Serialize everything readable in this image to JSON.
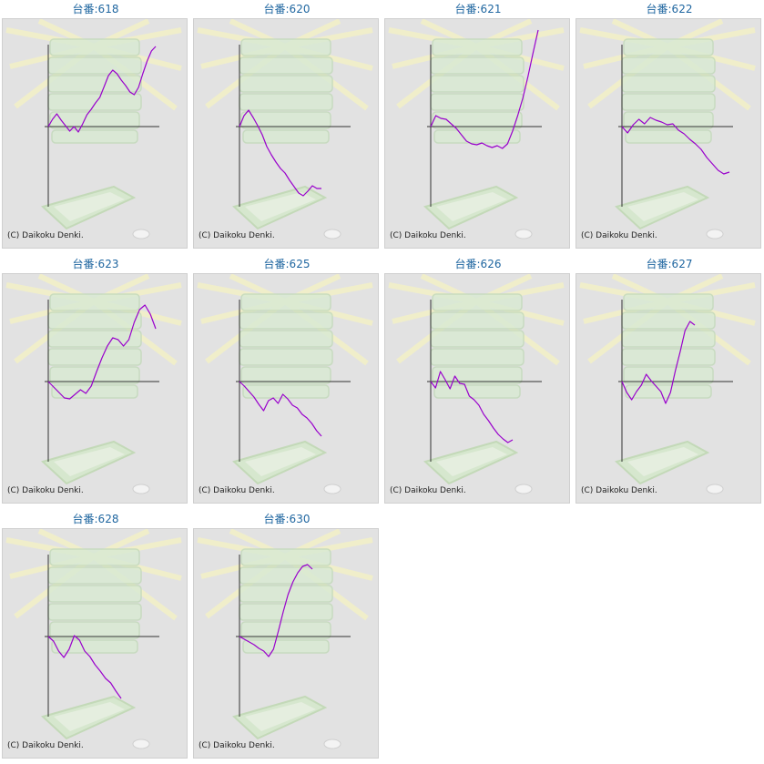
{
  "credit": "(C) Daikoku Denki.",
  "colors": {
    "line": "#9900cc",
    "axis": "#333333",
    "title": "#1f66a0",
    "panel": "#e2e2e2"
  },
  "chart_data": [
    {
      "type": "line",
      "title": "台番:618",
      "y": [
        0,
        0.8,
        1.4,
        0.7,
        0.1,
        -0.5,
        0.0,
        -0.6,
        0.3,
        1.3,
        1.9,
        2.6,
        3.2,
        4.4,
        5.6,
        6.2,
        5.8,
        5.1,
        4.5,
        3.8,
        3.5,
        4.3,
        5.8,
        7.2,
        8.3,
        8.8
      ]
    },
    {
      "type": "line",
      "title": "台番:620",
      "y": [
        0,
        1.2,
        1.8,
        1.0,
        0.1,
        -0.9,
        -2.2,
        -3.1,
        -3.9,
        -4.6,
        -5.1,
        -5.9,
        -6.6,
        -7.3,
        -7.6,
        -7.1,
        -6.5,
        -6.8,
        -6.8
      ]
    },
    {
      "type": "line",
      "title": "台番:621",
      "y": [
        0,
        1.2,
        0.9,
        0.8,
        0.3,
        -0.2,
        -0.9,
        -1.6,
        -1.9,
        -2.0,
        -1.8,
        -2.1,
        -2.3,
        -2.1,
        -2.4,
        -1.9,
        -0.5,
        1.2,
        3.1,
        5.5,
        8.1,
        10.6
      ]
    },
    {
      "type": "line",
      "title": "台番:622",
      "y": [
        0,
        -0.7,
        0.2,
        0.8,
        0.3,
        1.0,
        0.7,
        0.5,
        0.2,
        0.3,
        -0.4,
        -0.8,
        -1.4,
        -1.9,
        -2.5,
        -3.4,
        -4.1,
        -4.8,
        -5.2,
        -5.0
      ]
    },
    {
      "type": "line",
      "title": "台番:623",
      "y": [
        0,
        -0.6,
        -1.2,
        -1.8,
        -1.9,
        -1.4,
        -0.9,
        -1.3,
        -0.5,
        1.1,
        2.6,
        3.9,
        4.8,
        4.6,
        3.9,
        4.6,
        6.5,
        7.9,
        8.4,
        7.4,
        5.8
      ]
    },
    {
      "type": "line",
      "title": "台番:625",
      "y": [
        0,
        -0.5,
        -1.1,
        -1.7,
        -2.5,
        -3.2,
        -2.1,
        -1.8,
        -2.4,
        -1.4,
        -1.9,
        -2.6,
        -2.9,
        -3.6,
        -4.0,
        -4.6,
        -5.4,
        -6.0
      ]
    },
    {
      "type": "line",
      "title": "台番:626",
      "y": [
        0,
        -0.7,
        1.1,
        0.2,
        -0.8,
        0.6,
        -0.2,
        -0.3,
        -1.6,
        -2.0,
        -2.6,
        -3.6,
        -4.3,
        -5.1,
        -5.8,
        -6.3,
        -6.7,
        -6.4
      ]
    },
    {
      "type": "line",
      "title": "台番:627",
      "y": [
        0,
        -1.2,
        -2.0,
        -1.1,
        -0.4,
        0.8,
        0.1,
        -0.5,
        -1.1,
        -2.4,
        -1.2,
        1.2,
        3.3,
        5.6,
        6.6,
        6.2
      ]
    },
    {
      "type": "line",
      "title": "台番:628",
      "y": [
        0,
        -0.5,
        -1.6,
        -2.3,
        -1.4,
        0.1,
        -0.4,
        -1.6,
        -2.2,
        -3.1,
        -3.8,
        -4.6,
        -5.1,
        -6.0,
        -6.8
      ]
    },
    {
      "type": "line",
      "title": "台番:630",
      "y": [
        0,
        -0.3,
        -0.6,
        -0.9,
        -1.3,
        -1.6,
        -2.2,
        -1.4,
        0.6,
        2.7,
        4.6,
        6.0,
        7.0,
        7.7,
        7.9,
        7.4
      ]
    }
  ]
}
